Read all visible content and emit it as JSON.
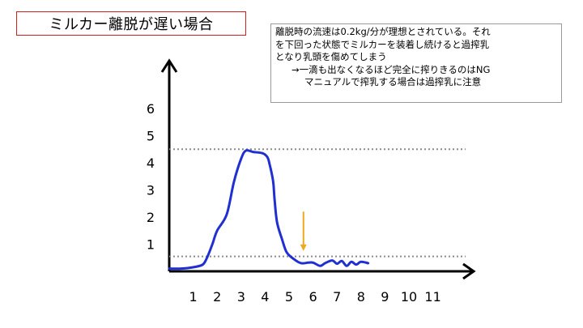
{
  "title": "ミルカー離脱が遅い場合",
  "note": {
    "lines": [
      "離脱時の流速は0.2kg/分が理想とされている。それ",
      "を下回った状態でミルカーを装着し続けると過搾乳",
      "となり乳頭を傷めてしまう",
      "→一滴も出なくなるほど完全に搾りきるのはNG",
      "マニュアルで搾乳する場合は過搾乳に注意"
    ]
  },
  "colors": {
    "title_border": "#d21f1f",
    "curve": "#1f2fd2",
    "arrow_marker": "#f0a81c",
    "reference_line": "#8c8c8c"
  },
  "chart_data": {
    "type": "line",
    "title": "",
    "xlabel": "",
    "ylabel": "",
    "x_ticks": [
      "1",
      "2",
      "3",
      "4",
      "5",
      "6",
      "7",
      "8",
      "9",
      "10",
      "11"
    ],
    "y_ticks": [
      "1",
      "2",
      "3",
      "4",
      "5",
      "6"
    ],
    "xlim": [
      0,
      12.2
    ],
    "ylim": [
      0,
      7
    ],
    "grid": false,
    "reference_lines": [
      4.5,
      0.55
    ],
    "marker_arrow": {
      "x": 5.6,
      "y_from": 2.2,
      "y_to": 0.75
    },
    "series": [
      {
        "x": [
          0,
          0.5,
          1.0,
          1.4,
          1.6,
          1.8,
          2.0,
          2.4,
          2.7,
          3.0,
          3.2,
          3.5,
          3.9,
          4.1,
          4.2,
          4.3,
          4.35,
          4.4,
          4.5,
          4.7,
          4.9,
          5.2,
          5.5,
          5.8,
          6.0,
          6.3,
          6.5,
          6.8,
          7.0,
          7.2,
          7.4,
          7.6,
          7.8,
          8.0,
          8.3
        ],
        "y": [
          0.1,
          0.1,
          0.15,
          0.25,
          0.55,
          1.0,
          1.5,
          2.1,
          3.3,
          4.15,
          4.45,
          4.4,
          4.35,
          4.2,
          3.9,
          3.5,
          3.2,
          2.6,
          1.8,
          1.2,
          0.7,
          0.45,
          0.3,
          0.32,
          0.32,
          0.2,
          0.3,
          0.4,
          0.28,
          0.38,
          0.2,
          0.35,
          0.25,
          0.35,
          0.3
        ]
      }
    ]
  }
}
